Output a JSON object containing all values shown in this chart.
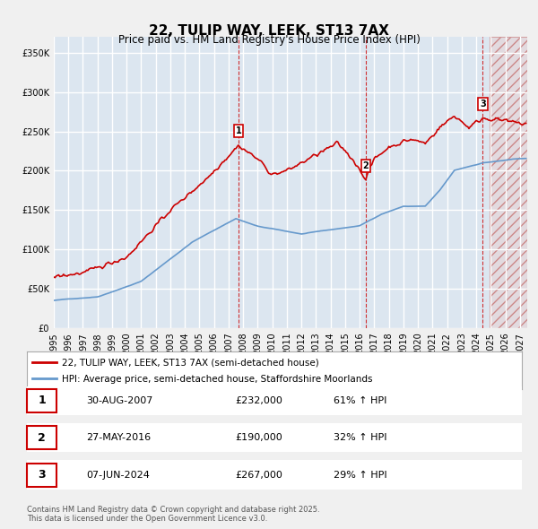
{
  "title": "22, TULIP WAY, LEEK, ST13 7AX",
  "subtitle": "Price paid vs. HM Land Registry's House Price Index (HPI)",
  "legend_line1": "22, TULIP WAY, LEEK, ST13 7AX (semi-detached house)",
  "legend_line2": "HPI: Average price, semi-detached house, Staffordshire Moorlands",
  "footnote": "Contains HM Land Registry data © Crown copyright and database right 2025.\nThis data is licensed under the Open Government Licence v3.0.",
  "red_color": "#cc0000",
  "blue_color": "#6699cc",
  "bg_color": "#dce6f0",
  "plot_bg_color": "#dce6f0",
  "grid_color": "#ffffff",
  "hatch_color": "#ddaaaa",
  "vline_color": "#cc0000",
  "ylim": [
    0,
    370000
  ],
  "yticks": [
    0,
    50000,
    100000,
    150000,
    200000,
    250000,
    300000,
    350000
  ],
  "xlim_start": 1995.0,
  "xlim_end": 2027.5,
  "transactions": [
    {
      "num": 1,
      "date": "30-AUG-2007",
      "price": 232000,
      "pct": "61%",
      "year": 2007.67
    },
    {
      "num": 2,
      "date": "27-MAY-2016",
      "price": 190000,
      "pct": "32%",
      "year": 2016.41
    },
    {
      "num": 3,
      "date": "07-JUN-2024",
      "price": 267000,
      "pct": "29%",
      "year": 2024.44
    }
  ]
}
